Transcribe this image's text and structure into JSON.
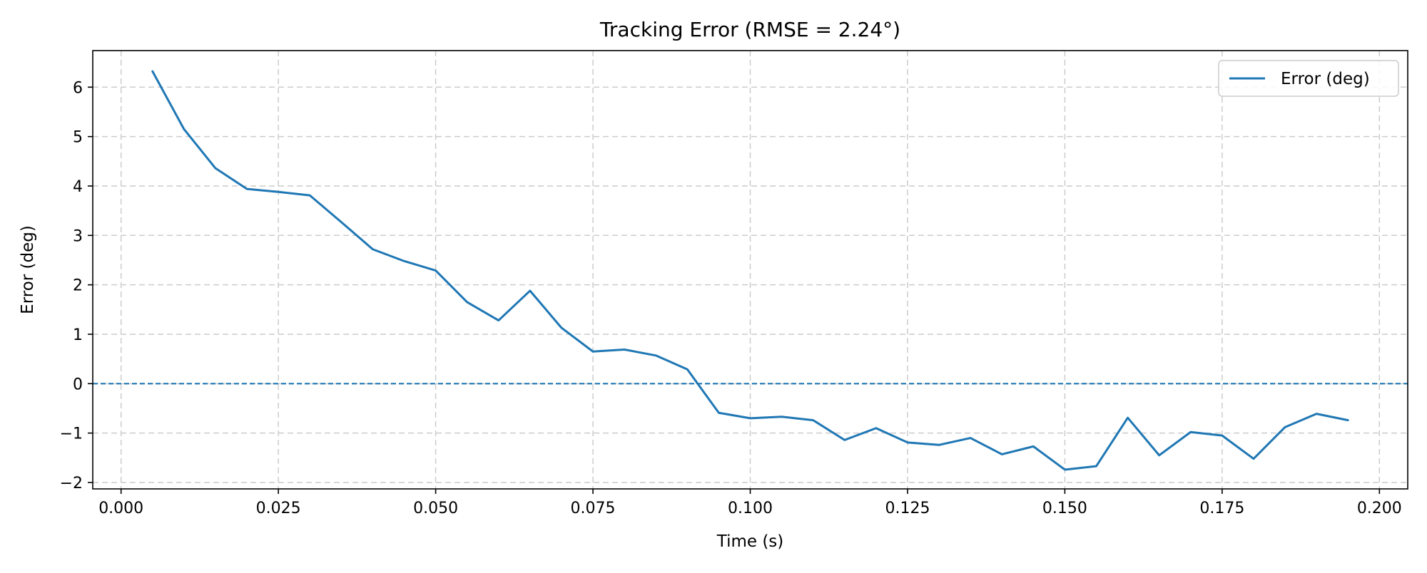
{
  "chart_data": {
    "type": "line",
    "title": "Tracking Error (RMSE = 2.24°)",
    "xlabel": "Time (s)",
    "ylabel": "Error (deg)",
    "xlim": [
      -0.0045,
      0.2045
    ],
    "ylim": [
      -2.13,
      6.74
    ],
    "x_ticks": [
      0.0,
      0.025,
      0.05,
      0.075,
      0.1,
      0.125,
      0.15,
      0.175,
      0.2
    ],
    "x_tick_labels": [
      "0.000",
      "0.025",
      "0.050",
      "0.075",
      "0.100",
      "0.125",
      "0.150",
      "0.175",
      "0.200"
    ],
    "y_ticks": [
      -2,
      -1,
      0,
      1,
      2,
      3,
      4,
      5,
      6
    ],
    "y_tick_labels": [
      "−2",
      "−1",
      "0",
      "1",
      "2",
      "3",
      "4",
      "5",
      "6"
    ],
    "grid": true,
    "legend_position": "upper-right",
    "reference_line": {
      "y": 0,
      "style": "dashed",
      "color": "#1f77b4"
    },
    "series": [
      {
        "name": "Error (deg)",
        "color": "#1f77b4",
        "x": [
          0.005,
          0.01,
          0.015,
          0.02,
          0.025,
          0.03,
          0.035,
          0.04,
          0.045,
          0.05,
          0.055,
          0.06,
          0.065,
          0.07,
          0.075,
          0.08,
          0.085,
          0.09,
          0.095,
          0.1,
          0.105,
          0.11,
          0.115,
          0.12,
          0.125,
          0.13,
          0.135,
          0.14,
          0.145,
          0.15,
          0.155,
          0.16,
          0.165,
          0.17,
          0.175,
          0.18,
          0.185,
          0.19,
          0.195
        ],
        "y": [
          6.32,
          5.15,
          4.36,
          3.94,
          3.88,
          3.81,
          3.27,
          2.72,
          2.48,
          2.29,
          1.65,
          1.28,
          1.88,
          1.13,
          0.65,
          0.69,
          0.57,
          0.29,
          -0.59,
          -0.7,
          -0.67,
          -0.74,
          -1.14,
          -0.9,
          -1.19,
          -1.24,
          -1.1,
          -1.43,
          -1.27,
          -1.74,
          -1.67,
          -0.69,
          -1.45,
          -0.98,
          -1.05,
          -1.52,
          -0.88,
          -0.61,
          -0.74
        ]
      }
    ]
  }
}
